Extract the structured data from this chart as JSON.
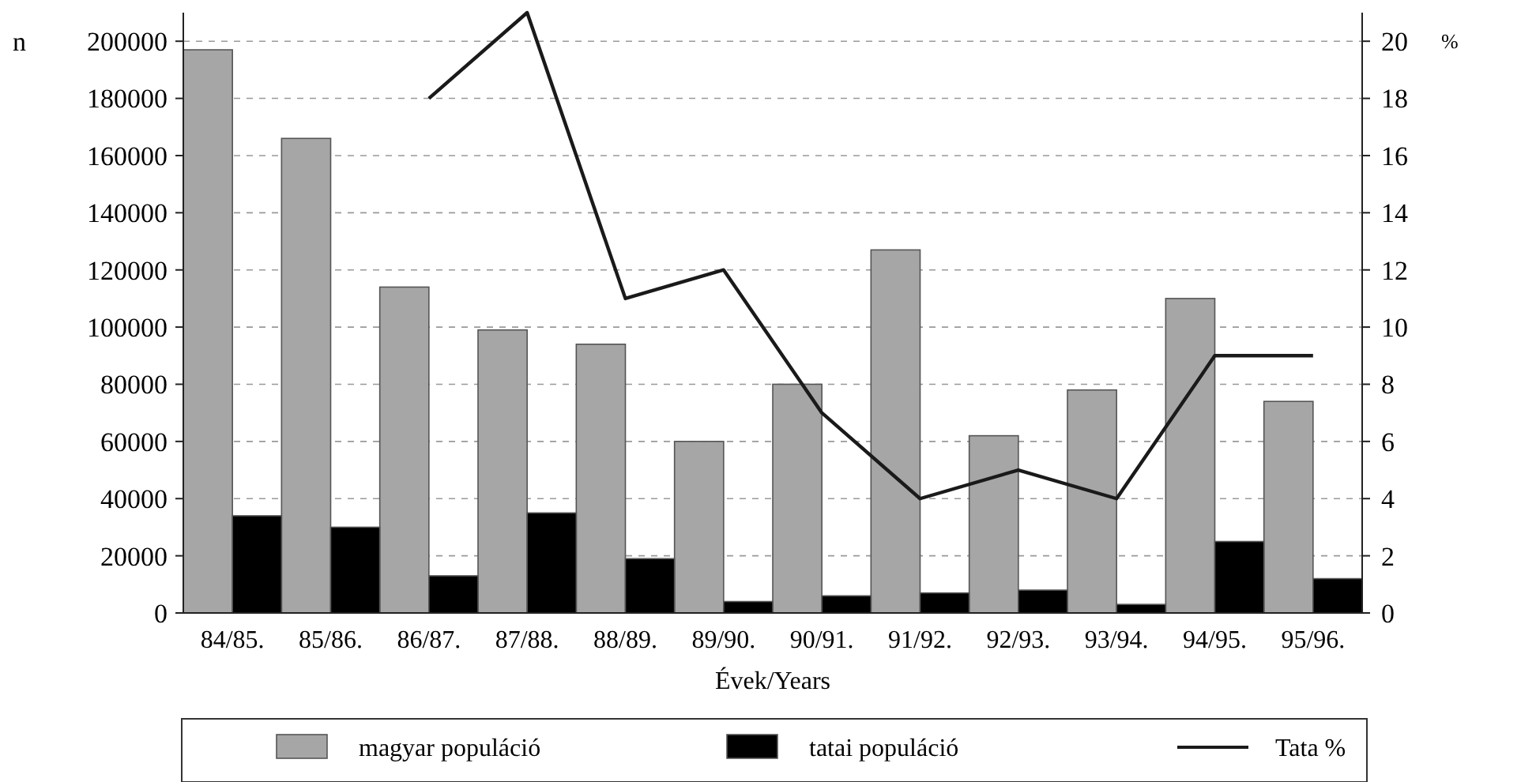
{
  "chart_data": {
    "type": "bar",
    "xlabel": "Évek/Years",
    "ylabel": "n",
    "y2label": "%",
    "categories": [
      "84/85.",
      "85/86.",
      "86/87.",
      "87/88.",
      "88/89.",
      "89/90.",
      "90/91.",
      "91/92.",
      "92/93.",
      "93/94.",
      "94/95.",
      "95/96."
    ],
    "series": [
      {
        "name": "magyar populáció",
        "color": "#a6a6a6",
        "values": [
          197000,
          166000,
          114000,
          99000,
          94000,
          60000,
          80000,
          127000,
          62000,
          78000,
          110000,
          74000
        ]
      },
      {
        "name": "tatai populáció",
        "color": "#000000",
        "values": [
          34000,
          30000,
          13000,
          35000,
          19000,
          4000,
          6000,
          7000,
          8000,
          3000,
          25000,
          12000
        ]
      },
      {
        "name": "Tata %",
        "type": "line",
        "axis": "y2",
        "color": "#1a1a1a",
        "values": [
          null,
          null,
          18,
          21,
          11,
          12,
          7,
          4,
          5,
          4,
          9,
          9
        ]
      }
    ],
    "ylim": [
      0,
      210000
    ],
    "yticks": [
      0,
      20000,
      40000,
      60000,
      80000,
      100000,
      120000,
      140000,
      160000,
      180000,
      200000
    ],
    "y2lim": [
      0,
      21
    ],
    "y2ticks": [
      0,
      2,
      4,
      6,
      8,
      10,
      12,
      14,
      16,
      18,
      20
    ],
    "grid": "y",
    "legend": "bottom",
    "line_style": "solid"
  }
}
